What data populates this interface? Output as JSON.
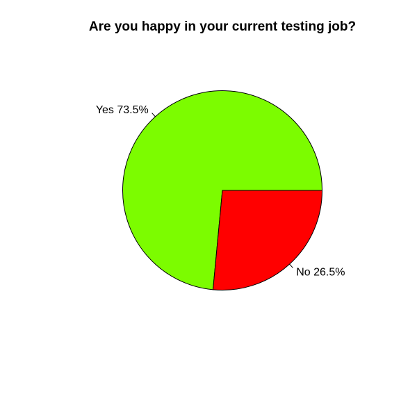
{
  "chart_data": {
    "type": "pie",
    "title": "Are you happy in your current testing job?",
    "slices": [
      {
        "label": "Yes",
        "value": 73.5,
        "display": "Yes 73.5%",
        "color": "#7CFC00"
      },
      {
        "label": "No",
        "value": 26.5,
        "display": "No 26.5%",
        "color": "#FF0000"
      }
    ],
    "start_angle_deg": 0,
    "direction": "counterclockwise",
    "legend": "none",
    "background": "#FFFFFF",
    "outline_color": "#000000"
  }
}
